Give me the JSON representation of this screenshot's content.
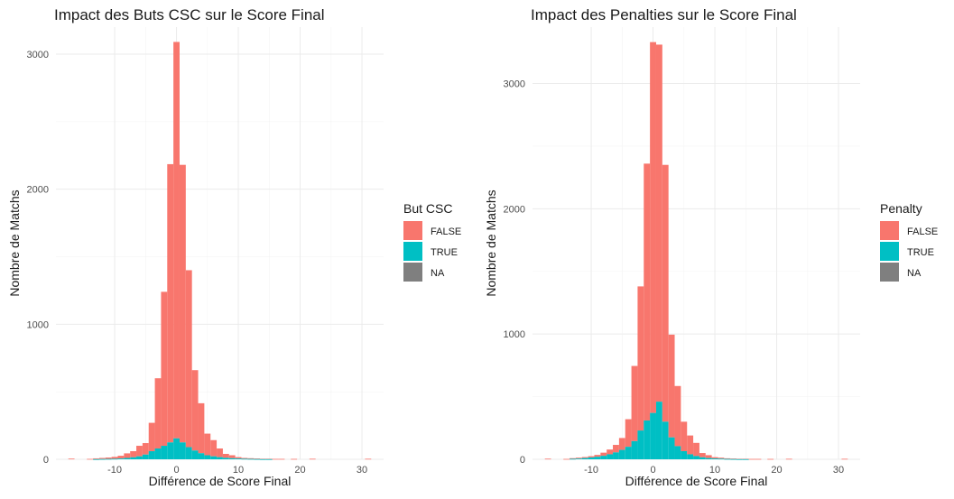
{
  "colors": {
    "false": "#F8766D",
    "true": "#00BFC4",
    "na": "#7F7F7F",
    "grid": "#EBEBEB",
    "background": "#FFFFFF"
  },
  "chart_data": [
    {
      "type": "bar",
      "subtype": "histogram",
      "stacked": true,
      "title": "Impact des Buts CSC sur le Score Final",
      "xlabel": "Différence de Score Final",
      "ylabel": "Nombre de Matchs",
      "xlim": [
        -19.5,
        33.5
      ],
      "ylim": [
        0,
        3200
      ],
      "xticks": [
        -10,
        0,
        10,
        20,
        30
      ],
      "yticks": [
        0,
        1000,
        2000,
        3000
      ],
      "grid": true,
      "legend": {
        "title": "But CSC",
        "position": "right",
        "entries": [
          {
            "label": "FALSE",
            "color_key": "false"
          },
          {
            "label": "TRUE",
            "color_key": "true"
          },
          {
            "label": "NA",
            "color_key": "na"
          }
        ]
      },
      "x": [
        -17,
        -14,
        -13,
        -12,
        -11,
        -10,
        -9,
        -8,
        -7,
        -6,
        -5,
        -4,
        -3,
        -2,
        -1,
        0,
        1,
        2,
        3,
        4,
        5,
        6,
        7,
        8,
        9,
        10,
        11,
        12,
        13,
        14,
        15,
        16,
        17,
        19,
        22,
        31
      ],
      "series": [
        {
          "name": "TRUE",
          "color_key": "true",
          "values": [
            0,
            0,
            1,
            2,
            3,
            4,
            6,
            10,
            15,
            22,
            35,
            60,
            80,
            100,
            125,
            155,
            125,
            90,
            65,
            45,
            30,
            22,
            16,
            11,
            8,
            6,
            4,
            3,
            2,
            1,
            1,
            0,
            0,
            0,
            0,
            0
          ]
        },
        {
          "name": "FALSE",
          "color_key": "false",
          "values": [
            5,
            3,
            6,
            8,
            10,
            14,
            20,
            34,
            45,
            78,
            85,
            210,
            520,
            1140,
            2060,
            2935,
            2055,
            1310,
            595,
            370,
            160,
            120,
            64,
            29,
            22,
            10,
            6,
            5,
            4,
            3,
            3,
            3,
            3,
            3,
            4,
            4
          ]
        }
      ]
    },
    {
      "type": "bar",
      "subtype": "histogram",
      "stacked": true,
      "title": "Impact des Penalties sur le Score Final",
      "xlabel": "Différence de Score Final",
      "ylabel": "Nombre de Matchs",
      "xlim": [
        -19.5,
        33.5
      ],
      "ylim": [
        0,
        3450
      ],
      "xticks": [
        -10,
        0,
        10,
        20,
        30
      ],
      "yticks": [
        0,
        1000,
        2000,
        3000
      ],
      "grid": true,
      "legend": {
        "title": "Penalty",
        "position": "right",
        "entries": [
          {
            "label": "FALSE",
            "color_key": "false"
          },
          {
            "label": "TRUE",
            "color_key": "true"
          },
          {
            "label": "NA",
            "color_key": "na"
          }
        ]
      },
      "x": [
        -17,
        -14,
        -13,
        -12,
        -11,
        -10,
        -9,
        -8,
        -7,
        -6,
        -5,
        -4,
        -3,
        -2,
        -1,
        0,
        1,
        2,
        3,
        4,
        5,
        6,
        7,
        8,
        9,
        10,
        11,
        12,
        13,
        14,
        15,
        16,
        17,
        19,
        22,
        31
      ],
      "series": [
        {
          "name": "TRUE",
          "color_key": "true",
          "values": [
            0,
            0,
            4,
            6,
            10,
            15,
            20,
            28,
            40,
            55,
            75,
            100,
            145,
            230,
            310,
            370,
            460,
            300,
            175,
            105,
            65,
            40,
            26,
            16,
            10,
            7,
            5,
            3,
            2,
            1,
            1,
            0,
            0,
            0,
            0,
            0
          ]
        },
        {
          "name": "FALSE",
          "color_key": "false",
          "values": [
            5,
            3,
            5,
            7,
            8,
            10,
            15,
            25,
            38,
            60,
            95,
            220,
            600,
            1150,
            2050,
            2960,
            2850,
            2050,
            820,
            480,
            235,
            150,
            105,
            34,
            23,
            10,
            8,
            5,
            4,
            3,
            3,
            3,
            3,
            3,
            4,
            4
          ]
        }
      ]
    }
  ]
}
